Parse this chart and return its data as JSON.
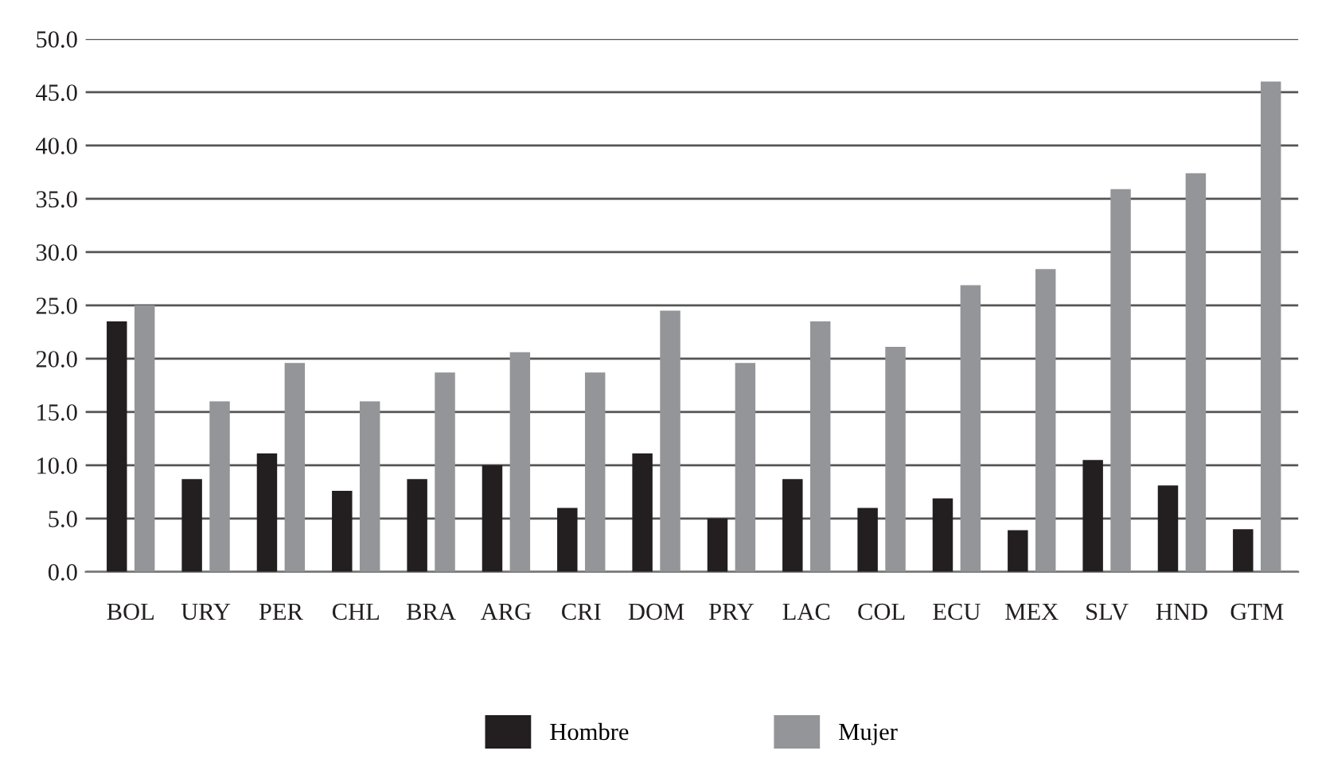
{
  "chart_data": {
    "type": "bar",
    "categories": [
      "BOL",
      "URY",
      "PER",
      "CHL",
      "BRA",
      "ARG",
      "CRI",
      "DOM",
      "PRY",
      "LAC",
      "COL",
      "ECU",
      "MEX",
      "SLV",
      "HND",
      "GTM"
    ],
    "series": [
      {
        "name": "Hombre",
        "color": "#231f20",
        "values": [
          23.5,
          8.7,
          11.1,
          7.6,
          8.7,
          10.0,
          6.0,
          11.1,
          5.0,
          8.7,
          6.0,
          6.9,
          3.9,
          10.5,
          8.1,
          4.0
        ]
      },
      {
        "name": "Mujer",
        "color": "#939598",
        "values": [
          25.0,
          16.0,
          19.6,
          16.0,
          18.7,
          20.6,
          18.7,
          24.5,
          19.6,
          23.5,
          21.1,
          26.9,
          28.4,
          35.9,
          37.4,
          46.0
        ]
      }
    ],
    "ylim": [
      0,
      50
    ],
    "yticks": [
      {
        "value": 0,
        "label": "0.0"
      },
      {
        "value": 5,
        "label": "5.0"
      },
      {
        "value": 10,
        "label": "10.0"
      },
      {
        "value": 15,
        "label": "15.0"
      },
      {
        "value": 20,
        "label": "20.0"
      },
      {
        "value": 25,
        "label": "25.0"
      },
      {
        "value": 30,
        "label": "30.0"
      },
      {
        "value": 35,
        "label": "35.0"
      },
      {
        "value": 40,
        "label": "40.0"
      },
      {
        "value": 45,
        "label": "45.0"
      },
      {
        "value": 50,
        "label": "50.0"
      }
    ],
    "grid": "y",
    "legend": "bottom"
  }
}
